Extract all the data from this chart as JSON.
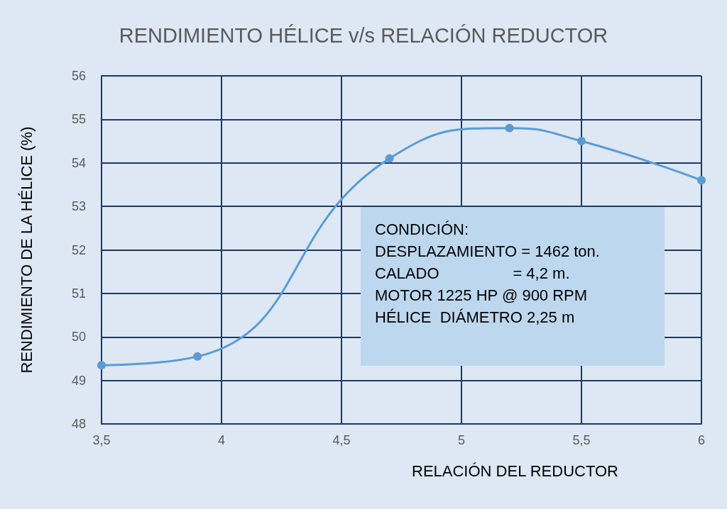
{
  "chart_data": {
    "type": "line",
    "title": "RENDIMIENTO HÉLICE v/s RELACIÓN REDUCTOR",
    "xlabel": "RELACIÓN DEL REDUCTOR",
    "ylabel": "RENDIMIENTO DE LA HÉLICE (%)",
    "x": [
      3.5,
      3.9,
      4.7,
      5.2,
      5.5,
      6
    ],
    "series": [
      {
        "color": "#5b9bd5",
        "values": [
          49.35,
          49.55,
          54.1,
          54.8,
          54.5,
          53.6
        ]
      }
    ],
    "xlim": [
      3.5,
      6
    ],
    "xticks": [
      {
        "value": 3.5,
        "label": "3,5"
      },
      4,
      {
        "value": 4.5,
        "label": "4,5"
      },
      5,
      {
        "value": 5.5,
        "label": "5,5"
      },
      6
    ],
    "ylim": [
      48,
      56
    ],
    "yticks": [
      48,
      49,
      50,
      51,
      52,
      53,
      54,
      55,
      56
    ],
    "grid": true,
    "marker": "circle",
    "line_style": "solid",
    "annotations": [
      "CONDICIÓN:",
      "DESPLAZAMIENTO = 1462 ton.",
      "CALADO                 = 4,2 m.",
      "MOTOR 1225 HP @ 900 RPM",
      "HÉLICE  DIÁMETRO 2,25 m"
    ]
  }
}
